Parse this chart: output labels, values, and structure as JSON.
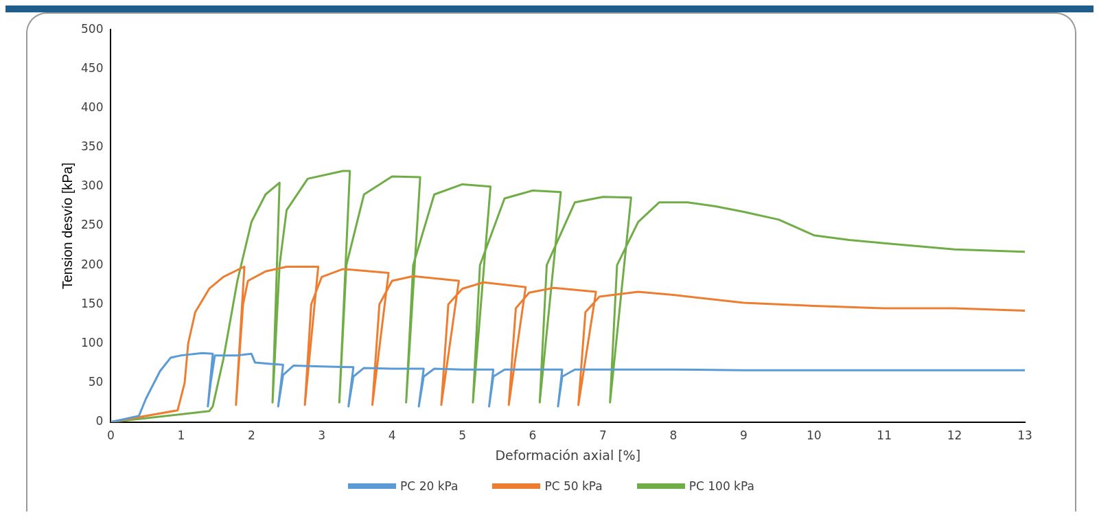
{
  "chart_data": {
    "type": "line",
    "xlabel": "Deformación axial [%]",
    "ylabel": "Tension desvío [kPa]",
    "xlim": [
      0,
      13
    ],
    "xticks": [
      0,
      1,
      2,
      3,
      4,
      5,
      6,
      7,
      8,
      9,
      10,
      11,
      12,
      13
    ],
    "ylim": [
      0,
      500
    ],
    "yticks": [
      0,
      50,
      100,
      150,
      200,
      250,
      300,
      350,
      400,
      450,
      500
    ],
    "grid": false,
    "legend": "bottom",
    "marker": "none",
    "line_style": "solid",
    "series": [
      {
        "name": "PC 20 kPa",
        "color": "#5b9bd5",
        "x": [
          0,
          0.4,
          0.5,
          0.7,
          0.85,
          1.0,
          1.3,
          1.45,
          1.38,
          1.42,
          1.48,
          1.8,
          2.0,
          2.05,
          2.3,
          2.45,
          2.38,
          2.45,
          2.6,
          3.0,
          3.45,
          3.38,
          3.45,
          3.6,
          4.0,
          4.45,
          4.38,
          4.45,
          4.6,
          5.0,
          5.44,
          5.38,
          5.44,
          5.6,
          6.0,
          6.42,
          6.36,
          6.42,
          6.6,
          7.0,
          8.0,
          9.0,
          10.0,
          11.0,
          12.0,
          13.0
        ],
        "values": [
          0,
          8,
          30,
          65,
          82,
          85,
          88,
          87,
          20,
          50,
          85,
          85,
          87,
          76,
          74,
          73,
          20,
          60,
          72,
          71,
          70,
          20,
          58,
          69,
          68,
          68,
          20,
          58,
          68,
          67,
          67,
          20,
          58,
          67,
          67,
          67,
          20,
          58,
          67,
          67,
          67,
          66,
          66,
          66,
          66,
          66
        ]
      },
      {
        "name": "PC 50 kPa",
        "color": "#ed7d31",
        "x": [
          0,
          0.5,
          0.95,
          1.05,
          1.1,
          1.2,
          1.4,
          1.6,
          1.85,
          1.9,
          1.78,
          1.88,
          1.95,
          2.2,
          2.5,
          2.95,
          2.76,
          2.85,
          3.0,
          3.3,
          3.95,
          3.72,
          3.82,
          4.0,
          4.3,
          4.95,
          4.7,
          4.8,
          5.0,
          5.3,
          5.9,
          5.66,
          5.76,
          5.95,
          6.3,
          6.9,
          6.65,
          6.75,
          6.95,
          7.5,
          8.0,
          9.0,
          10.0,
          11.0,
          12.0,
          13.0
        ],
        "values": [
          0,
          8,
          15,
          50,
          100,
          140,
          170,
          185,
          196,
          198,
          22,
          150,
          180,
          192,
          198,
          198,
          22,
          150,
          185,
          195,
          190,
          22,
          150,
          180,
          186,
          180,
          22,
          150,
          170,
          178,
          172,
          22,
          145,
          165,
          171,
          166,
          22,
          140,
          160,
          166,
          162,
          152,
          148,
          145,
          145,
          142
        ]
      },
      {
        "name": "PC 100 kPa",
        "color": "#70ad47",
        "x": [
          0,
          1.4,
          1.45,
          1.6,
          1.8,
          2.0,
          2.2,
          2.4,
          2.3,
          2.4,
          2.5,
          2.8,
          3.3,
          3.4,
          3.25,
          3.35,
          3.6,
          4.0,
          4.4,
          4.2,
          4.3,
          4.6,
          5.0,
          5.4,
          5.15,
          5.25,
          5.6,
          6.0,
          6.4,
          6.1,
          6.2,
          6.6,
          7.0,
          7.4,
          7.1,
          7.2,
          7.5,
          7.8,
          8.2,
          8.6,
          9.0,
          9.5,
          10.0,
          10.5,
          11.0,
          12.0,
          13.0
        ],
        "values": [
          0,
          14,
          20,
          80,
          180,
          255,
          290,
          305,
          25,
          200,
          270,
          310,
          320,
          320,
          25,
          200,
          290,
          313,
          312,
          25,
          200,
          290,
          303,
          300,
          25,
          200,
          285,
          295,
          293,
          25,
          200,
          280,
          287,
          286,
          25,
          200,
          255,
          280,
          280,
          275,
          268,
          258,
          238,
          232,
          228,
          220,
          217
        ]
      }
    ]
  }
}
